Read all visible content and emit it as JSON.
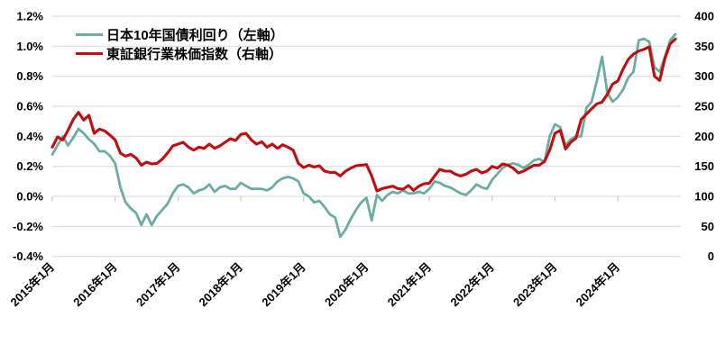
{
  "chart_data": {
    "type": "line",
    "title": "",
    "grid": true,
    "legend_position": "top-left-inside",
    "colors": {
      "grid": "#d9d9d9",
      "tick": "#bfbfbf",
      "text": "#000000",
      "background": "#ffffff"
    },
    "x_categories_monthly": "2015-01 to 2024-12",
    "x_tick_labels": [
      "2015年1月",
      "2016年1月",
      "2017年1月",
      "2018年1月",
      "2019年1月",
      "2020年1月",
      "2021年1月",
      "2022年1月",
      "2023年1月",
      "2024年1月"
    ],
    "x_tick_month_indices": [
      0,
      12,
      24,
      36,
      48,
      60,
      72,
      84,
      96,
      108
    ],
    "left_axis": {
      "min": -0.4,
      "max": 1.2,
      "tick_values": [
        1.2,
        1.0,
        0.8,
        0.6,
        0.4,
        0.2,
        0.0,
        -0.2,
        -0.4
      ],
      "tick_labels": [
        "1.2%",
        "1.0%",
        "0.8%",
        "0.6%",
        "0.4%",
        "0.2%",
        "0.0%",
        "-0.2%",
        "-0.4%"
      ]
    },
    "right_axis": {
      "min": 0,
      "max": 400,
      "tick_values": [
        400,
        350,
        300,
        250,
        200,
        150,
        100,
        50,
        0
      ],
      "tick_labels": [
        "400",
        "350",
        "300",
        "250",
        "200",
        "150",
        "100",
        "50",
        "0"
      ]
    },
    "series": [
      {
        "name": "日本10年国債利回り（左軸）",
        "axis": "left",
        "color": "#6cada3",
        "width": 2.8,
        "values": [
          0.28,
          0.34,
          0.4,
          0.34,
          0.39,
          0.45,
          0.42,
          0.38,
          0.35,
          0.3,
          0.3,
          0.27,
          0.22,
          0.06,
          -0.04,
          -0.08,
          -0.11,
          -0.19,
          -0.12,
          -0.19,
          -0.13,
          -0.09,
          -0.05,
          0.02,
          0.07,
          0.08,
          0.06,
          0.02,
          0.04,
          0.05,
          0.08,
          0.03,
          0.06,
          0.07,
          0.05,
          0.05,
          0.09,
          0.07,
          0.05,
          0.05,
          0.05,
          0.04,
          0.06,
          0.1,
          0.12,
          0.13,
          0.12,
          0.1,
          0.02,
          0.0,
          -0.04,
          -0.03,
          -0.07,
          -0.12,
          -0.14,
          -0.27,
          -0.22,
          -0.15,
          -0.09,
          -0.04,
          -0.01,
          -0.16,
          0.01,
          -0.03,
          0.01,
          0.03,
          0.02,
          0.04,
          0.02,
          0.02,
          0.03,
          0.02,
          0.05,
          0.1,
          0.09,
          0.07,
          0.06,
          0.04,
          0.02,
          0.01,
          0.04,
          0.08,
          0.06,
          0.05,
          0.11,
          0.15,
          0.19,
          0.21,
          0.22,
          0.21,
          0.19,
          0.21,
          0.24,
          0.25,
          0.23,
          0.4,
          0.48,
          0.46,
          0.34,
          0.38,
          0.4,
          0.4,
          0.59,
          0.63,
          0.77,
          0.93,
          0.69,
          0.63,
          0.66,
          0.71,
          0.79,
          0.83,
          1.04,
          1.05,
          1.03,
          0.86,
          0.83,
          0.93,
          1.04,
          1.08
        ]
      },
      {
        "name": "東証銀行業株価指数（右軸）",
        "axis": "right",
        "color": "#c00d10",
        "width": 3.1,
        "values": [
          182,
          199,
          194,
          210,
          228,
          240,
          227,
          235,
          205,
          212,
          209,
          202,
          194,
          172,
          167,
          170,
          164,
          152,
          157,
          154,
          155,
          162,
          172,
          184,
          187,
          190,
          182,
          177,
          182,
          180,
          187,
          180,
          184,
          190,
          196,
          193,
          203,
          205,
          194,
          187,
          191,
          182,
          187,
          180,
          186,
          182,
          177,
          155,
          148,
          152,
          149,
          151,
          142,
          140,
          140,
          134,
          142,
          147,
          151,
          152,
          153,
          134,
          109,
          113,
          115,
          117,
          113,
          112,
          118,
          110,
          117,
          121,
          122,
          134,
          145,
          142,
          142,
          137,
          134,
          137,
          142,
          145,
          139,
          142,
          150,
          147,
          154,
          152,
          147,
          139,
          142,
          147,
          152,
          152,
          158,
          177,
          205,
          210,
          179,
          190,
          197,
          228,
          237,
          246,
          254,
          257,
          270,
          287,
          292,
          312,
          328,
          337,
          342,
          345,
          349,
          300,
          293,
          330,
          354,
          362
        ]
      }
    ]
  }
}
